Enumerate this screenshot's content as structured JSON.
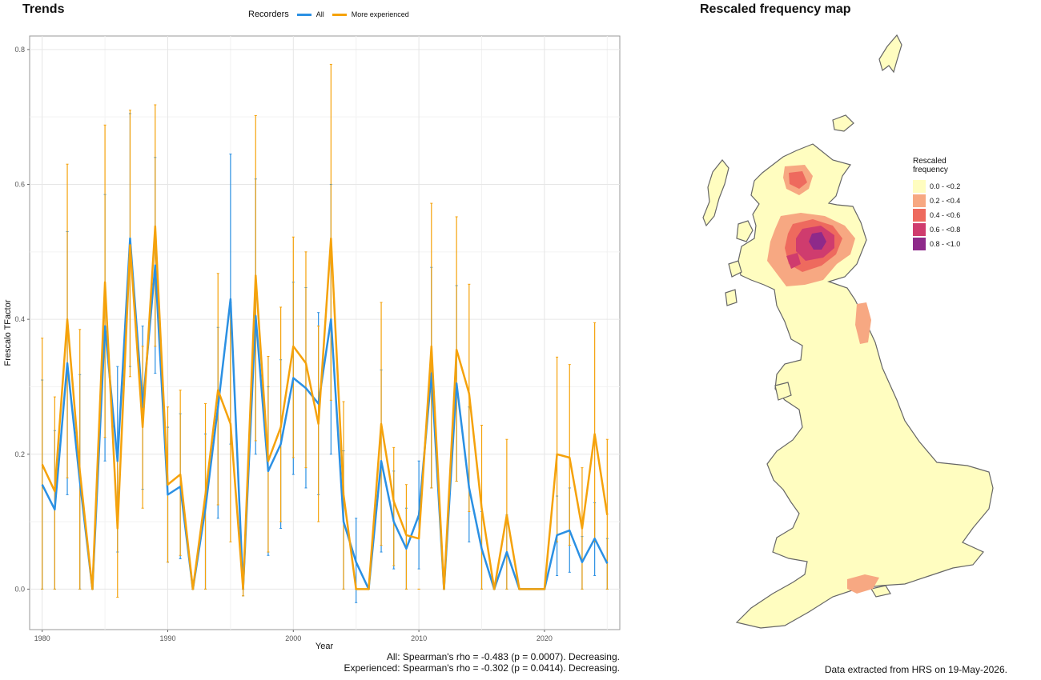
{
  "trends": {
    "title": "Trends",
    "legend_title": "Recorders",
    "legend_items": [
      {
        "label": "All",
        "color": "#2b90e3"
      },
      {
        "label": "More experienced",
        "color": "#f5a20b"
      }
    ],
    "footer_line1": "All: Spearman's rho = -0.483 (p = 0.0007). Decreasing.",
    "footer_line2": "Experienced: Spearman's rho = -0.302 (p = 0.0414). Decreasing."
  },
  "map": {
    "title": "Rescaled frequency map",
    "legend_title": "Rescaled frequency",
    "legend_items": [
      {
        "label": "0.0 - <0.2",
        "color": "#fffdc0"
      },
      {
        "label": "0.2 - <0.4",
        "color": "#f7a882"
      },
      {
        "label": "0.4 - <0.6",
        "color": "#ee6a5e"
      },
      {
        "label": "0.6 - <0.8",
        "color": "#cf3c6e"
      },
      {
        "label": "0.8 - <1.0",
        "color": "#8e2a8a"
      }
    ],
    "footer": "Data extracted from HRS on 19-May-2026."
  },
  "chart_data": {
    "type": "line",
    "title": "Trends",
    "xlabel": "Year",
    "ylabel": "Frescalo TFactor",
    "xlim": [
      1979,
      2026
    ],
    "ylim": [
      -0.06,
      0.82
    ],
    "xticks": [
      1980,
      1990,
      2000,
      2010,
      2020
    ],
    "yticks": [
      0.0,
      0.2,
      0.4,
      0.6,
      0.8
    ],
    "grid": true,
    "legend_position": "top",
    "series": [
      {
        "name": "All",
        "color": "#2b90e3",
        "x": [
          1980,
          1981,
          1982,
          1983,
          1984,
          1985,
          1986,
          1987,
          1988,
          1989,
          1990,
          1991,
          1992,
          1993,
          1994,
          1995,
          1996,
          1997,
          1998,
          1999,
          2000,
          2001,
          2002,
          2003,
          2004,
          2005,
          2006,
          2007,
          2008,
          2009,
          2010,
          2011,
          2012,
          2013,
          2014,
          2015,
          2016,
          2017,
          2018,
          2019,
          2020,
          2021,
          2022,
          2023,
          2024,
          2025
        ],
        "y": [
          0.155,
          0.118,
          0.335,
          0.16,
          0.0,
          0.39,
          0.19,
          0.52,
          0.27,
          0.48,
          0.14,
          0.152,
          0.0,
          0.12,
          0.27,
          0.43,
          0.0,
          0.405,
          0.175,
          0.215,
          0.313,
          0.298,
          0.275,
          0.4,
          0.1,
          0.04,
          0.0,
          0.19,
          0.1,
          0.06,
          0.11,
          0.32,
          0.0,
          0.305,
          0.15,
          0.06,
          0.0,
          0.055,
          0.0,
          0.0,
          0.0,
          0.08,
          0.087,
          0.04,
          0.075,
          0.038
        ],
        "lower": [
          0.0,
          0.0,
          0.14,
          0.0,
          0.0,
          0.19,
          0.055,
          0.33,
          0.148,
          0.32,
          0.04,
          0.045,
          0.0,
          0.0,
          0.105,
          0.215,
          -0.01,
          0.2,
          0.05,
          0.09,
          0.17,
          0.15,
          0.14,
          0.2,
          0.0,
          -0.02,
          0.0,
          0.055,
          0.03,
          0.0,
          0.03,
          0.15,
          0.0,
          0.16,
          0.07,
          0.0,
          0.0,
          0.0,
          0.0,
          0.0,
          0.0,
          0.02,
          0.025,
          0.0,
          0.02,
          0.0
        ],
        "upper": [
          0.31,
          0.235,
          0.53,
          0.318,
          0.0,
          0.585,
          0.33,
          0.705,
          0.39,
          0.64,
          0.24,
          0.26,
          0.0,
          0.23,
          0.388,
          0.645,
          0.0,
          0.608,
          0.3,
          0.34,
          0.455,
          0.447,
          0.41,
          0.6,
          0.205,
          0.105,
          0.0,
          0.325,
          0.175,
          0.12,
          0.19,
          0.477,
          0.0,
          0.45,
          0.27,
          0.115,
          0.0,
          0.11,
          0.0,
          0.0,
          0.0,
          0.138,
          0.15,
          0.078,
          0.128,
          0.075
        ]
      },
      {
        "name": "More experienced",
        "color": "#f5a20b",
        "x": [
          1980,
          1981,
          1982,
          1983,
          1984,
          1985,
          1986,
          1987,
          1988,
          1989,
          1990,
          1991,
          1992,
          1993,
          1994,
          1995,
          1996,
          1997,
          1998,
          1999,
          2000,
          2001,
          2002,
          2003,
          2004,
          2005,
          2006,
          2007,
          2008,
          2009,
          2010,
          2011,
          2012,
          2013,
          2014,
          2015,
          2016,
          2017,
          2018,
          2019,
          2020,
          2021,
          2022,
          2023,
          2024,
          2025
        ],
        "y": [
          0.185,
          0.145,
          0.4,
          0.175,
          0.0,
          0.455,
          0.09,
          0.51,
          0.24,
          0.538,
          0.155,
          0.17,
          0.0,
          0.14,
          0.295,
          0.245,
          0.0,
          0.465,
          0.19,
          0.24,
          0.36,
          0.335,
          0.245,
          0.52,
          0.14,
          0.0,
          0.0,
          0.245,
          0.13,
          0.08,
          0.075,
          0.36,
          0.0,
          0.355,
          0.29,
          0.12,
          0.0,
          0.11,
          0.0,
          0.0,
          0.0,
          0.2,
          0.195,
          0.09,
          0.23,
          0.11
        ],
        "lower": [
          0.0,
          0.0,
          0.165,
          0.0,
          0.0,
          0.225,
          -0.012,
          0.315,
          0.12,
          0.36,
          0.04,
          0.05,
          0.0,
          0.0,
          0.125,
          0.07,
          -0.01,
          0.22,
          0.055,
          0.1,
          0.195,
          0.18,
          0.1,
          0.28,
          0.0,
          0.0,
          0.0,
          0.065,
          0.035,
          0.0,
          0.0,
          0.15,
          0.0,
          0.16,
          0.115,
          0.0,
          0.0,
          0.0,
          0.0,
          0.0,
          0.0,
          0.07,
          0.065,
          0.0,
          0.07,
          0.0
        ],
        "upper": [
          0.372,
          0.285,
          0.63,
          0.385,
          0.0,
          0.688,
          0.19,
          0.71,
          0.36,
          0.718,
          0.27,
          0.295,
          0.0,
          0.275,
          0.468,
          0.425,
          0.0,
          0.702,
          0.345,
          0.418,
          0.522,
          0.5,
          0.39,
          0.778,
          0.278,
          0.0,
          0.0,
          0.425,
          0.21,
          0.155,
          0.0,
          0.572,
          0.0,
          0.552,
          0.452,
          0.243,
          0.0,
          0.222,
          0.0,
          0.0,
          0.0,
          0.344,
          0.333,
          0.18,
          0.395,
          0.222
        ]
      }
    ]
  }
}
